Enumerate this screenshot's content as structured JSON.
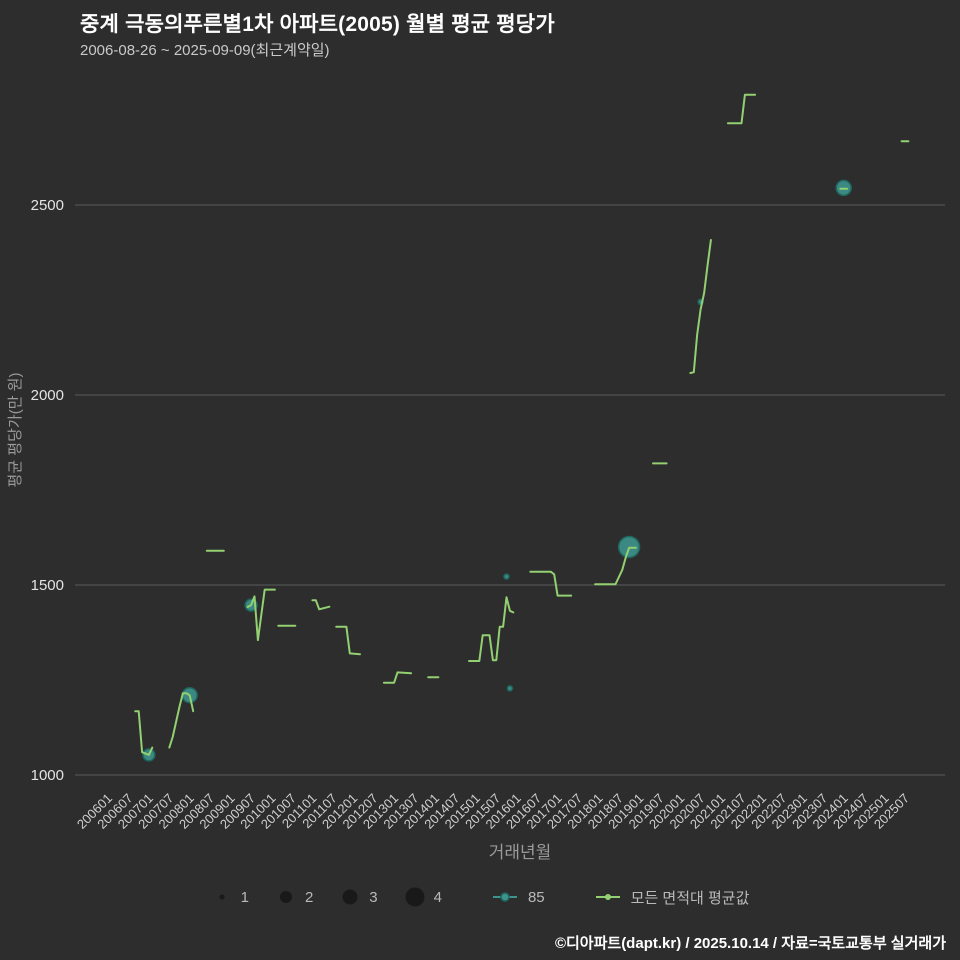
{
  "header": {
    "title": "중계 극동의푸른별1차 아파트(2005) 월별 평균 평당가",
    "subtitle": "2006-08-26 ~ 2025-09-09(최근계약일)"
  },
  "footer": {
    "credit": "©디아파트(dapt.kr) / 2025.10.14 / 자료=국토교통부 실거래가"
  },
  "legend": {
    "sizes": [
      "1",
      "2",
      "3",
      "4"
    ],
    "series85_label": "85",
    "avg_label": "모든 면적대 평균값"
  },
  "colors": {
    "background": "#2d2d2d",
    "grid": "#5c5c5c",
    "tick_text": "#e3e3e3",
    "axis_title": "#9a9a9a"
  },
  "chart_data": {
    "type": "line",
    "title": "중계 극동의푸른별1차 아파트(2005) 월별 평균 평당가",
    "subtitle": "2006-08-26 ~ 2025-09-09(최근계약일)",
    "xlabel": "거래년월",
    "ylabel": "평균 평당가(만 원)",
    "ylim": [
      950,
      2850
    ],
    "yticks": [
      1000,
      1500,
      2000,
      2500
    ],
    "grid": true,
    "legend_position": "bottom",
    "xticks": [
      "200601",
      "200607",
      "200701",
      "200707",
      "200801",
      "200807",
      "200901",
      "200907",
      "201001",
      "201007",
      "201101",
      "201107",
      "201201",
      "201207",
      "201301",
      "201307",
      "201401",
      "201407",
      "201501",
      "201507",
      "201601",
      "201607",
      "201701",
      "201707",
      "201801",
      "201807",
      "201901",
      "201907",
      "202001",
      "202007",
      "202101",
      "202107",
      "202201",
      "202207",
      "202301",
      "202307",
      "202401",
      "202407",
      "202501",
      "202507"
    ],
    "line_series": {
      "name": "모든 면적대 평균값",
      "color": "#93d071",
      "segments": [
        [
          [
            "200609",
            1168
          ],
          [
            "200610",
            1168
          ],
          [
            "200611",
            1060
          ],
          [
            "200701",
            1053
          ],
          [
            "200702",
            1072
          ]
        ],
        [
          [
            "200707",
            1072
          ],
          [
            "200708",
            1100
          ],
          [
            "200710",
            1180
          ],
          [
            "200711",
            1215
          ],
          [
            "200712",
            1215
          ],
          [
            "200801",
            1210
          ],
          [
            "200802",
            1168
          ]
        ],
        [
          [
            "200806",
            1590
          ],
          [
            "200811",
            1590
          ]
        ],
        [
          [
            "200906",
            1442
          ],
          [
            "200907",
            1447
          ],
          [
            "200908",
            1470
          ],
          [
            "200909",
            1355
          ],
          [
            "200911",
            1488
          ],
          [
            "201002",
            1488
          ]
        ],
        [
          [
            "201003",
            1393
          ],
          [
            "201008",
            1393
          ]
        ],
        [
          [
            "201101",
            1460
          ],
          [
            "201102",
            1460
          ],
          [
            "201103",
            1436
          ],
          [
            "201106",
            1443
          ]
        ],
        [
          [
            "201108",
            1390
          ],
          [
            "201111",
            1390
          ],
          [
            "201112",
            1320
          ],
          [
            "201203",
            1318
          ]
        ],
        [
          [
            "201210",
            1243
          ],
          [
            "201301",
            1243
          ],
          [
            "201302",
            1270
          ],
          [
            "201306",
            1268
          ]
        ],
        [
          [
            "201311",
            1257
          ],
          [
            "201402",
            1257
          ]
        ],
        [
          [
            "201411",
            1300
          ],
          [
            "201502",
            1300
          ],
          [
            "201503",
            1368
          ],
          [
            "201505",
            1368
          ],
          [
            "201506",
            1302
          ],
          [
            "201507",
            1302
          ],
          [
            "201508",
            1390
          ],
          [
            "201509",
            1390
          ],
          [
            "201510",
            1468
          ],
          [
            "201511",
            1432
          ],
          [
            "201512",
            1428
          ]
        ],
        [
          [
            "201605",
            1535
          ],
          [
            "201611",
            1535
          ],
          [
            "201612",
            1528
          ],
          [
            "201701",
            1472
          ],
          [
            "201705",
            1472
          ]
        ],
        [
          [
            "201712",
            1502
          ],
          [
            "201806",
            1502
          ],
          [
            "201808",
            1540
          ],
          [
            "201809",
            1572
          ],
          [
            "201810",
            1598
          ],
          [
            "201812",
            1598
          ]
        ],
        [
          [
            "201905",
            1820
          ],
          [
            "201909",
            1820
          ]
        ],
        [
          [
            "202004",
            2058
          ],
          [
            "202005",
            2060
          ],
          [
            "202006",
            2160
          ],
          [
            "202007",
            2225
          ],
          [
            "202008",
            2268
          ],
          [
            "202009",
            2340
          ],
          [
            "202010",
            2408
          ]
        ],
        [
          [
            "202103",
            2715
          ],
          [
            "202107",
            2715
          ],
          [
            "202108",
            2790
          ],
          [
            "202111",
            2790
          ]
        ],
        [
          [
            "202312",
            2543
          ],
          [
            "202402",
            2543
          ]
        ],
        [
          [
            "202506",
            2668
          ],
          [
            "202508",
            2668
          ]
        ]
      ]
    },
    "scatter_series": {
      "name": "85",
      "color": "#3d948c",
      "stroke": "#1f665e",
      "size_unit": "count",
      "points": [
        {
          "ym": "200701",
          "value": 1053,
          "count": 2
        },
        {
          "ym": "200801",
          "value": 1210,
          "count": 3
        },
        {
          "ym": "200907",
          "value": 1447,
          "count": 2
        },
        {
          "ym": "201510",
          "value": 1522,
          "count": 1
        },
        {
          "ym": "201511",
          "value": 1228,
          "count": 1
        },
        {
          "ym": "201810",
          "value": 1600,
          "count": 4
        },
        {
          "ym": "202007",
          "value": 2245,
          "count": 1
        },
        {
          "ym": "202401",
          "value": 2545,
          "count": 3
        }
      ]
    }
  }
}
